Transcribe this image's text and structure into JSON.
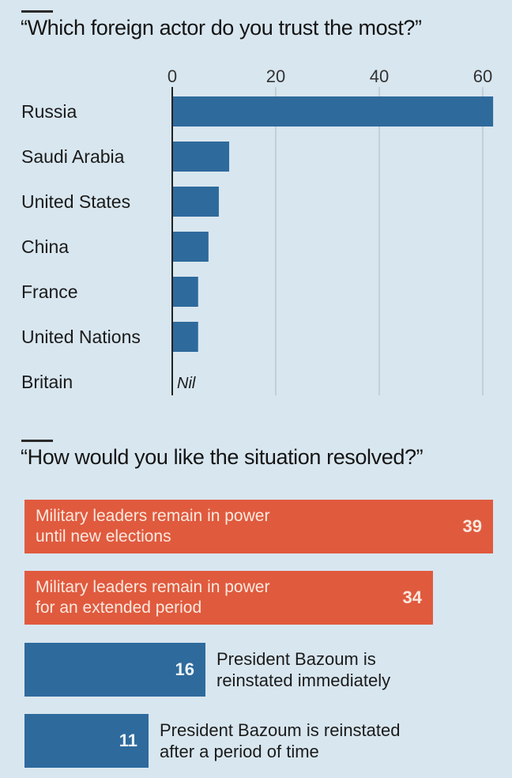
{
  "colors": {
    "background": "#d8e6ef",
    "bar_blue": "#2e6a9c",
    "bar_red": "#e05a3e",
    "axis": "#222222",
    "grid": "#b4c0c8"
  },
  "chart_data": [
    {
      "type": "bar",
      "orientation": "horizontal",
      "title": "“Which foreign actor do you trust the most?”",
      "categories": [
        "Russia",
        "Saudi Arabia",
        "United States",
        "China",
        "France",
        "United Nations",
        "Britain"
      ],
      "values": [
        62,
        11,
        9,
        7,
        5,
        5,
        0
      ],
      "value_annotations": {
        "Britain": "Nil"
      },
      "x_ticks": [
        "0",
        "20",
        "40",
        "60"
      ],
      "xlim": [
        0,
        62
      ],
      "grid": true,
      "xlabel": "",
      "ylabel": ""
    },
    {
      "type": "bar",
      "orientation": "horizontal",
      "title": "“How would you like the situation resolved?”",
      "categories": [
        "Military leaders remain in power until new elections",
        "Military leaders remain in power for an extended period",
        "President Bazoum is reinstated immediately",
        "President Bazoum is reinstated after a period of time"
      ],
      "values": [
        39,
        34,
        16,
        11
      ],
      "bars": [
        {
          "line1": "Military leaders remain in power",
          "line2": "until new elections",
          "value": 39,
          "value_label": "39",
          "color": "#e05a3e",
          "label_position": "inside"
        },
        {
          "line1": "Military leaders remain in power",
          "line2": "for an extended period",
          "value": 34,
          "value_label": "34",
          "color": "#e05a3e",
          "label_position": "inside"
        },
        {
          "line1": "President Bazoum is",
          "line2": "reinstated immediately",
          "value": 16,
          "value_label": "16",
          "color": "#2e6a9c",
          "label_position": "outside"
        },
        {
          "line1": "President Bazoum is reinstated",
          "line2": "after a period of time",
          "value": 11,
          "value_label": "11",
          "color": "#2e6a9c",
          "label_position": "outside"
        }
      ],
      "grid": false
    }
  ]
}
